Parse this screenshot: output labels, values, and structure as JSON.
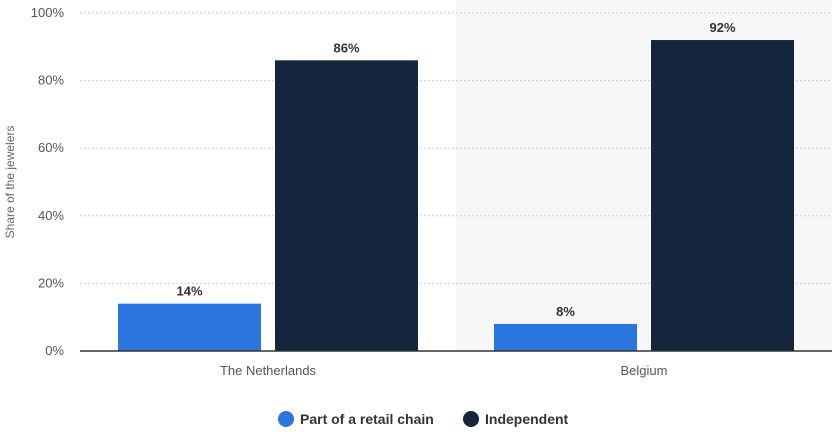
{
  "chart_data": {
    "type": "bar",
    "categories": [
      "The Netherlands",
      "Belgium"
    ],
    "series": [
      {
        "name": "Part of a retail chain",
        "color": "#2a75de",
        "values": [
          14,
          8
        ],
        "labels": [
          "14%",
          "8%"
        ]
      },
      {
        "name": "Independent",
        "color": "#13263c",
        "values": [
          86,
          92
        ],
        "labels": [
          "86%",
          "92%"
        ]
      }
    ],
    "ylabel": "Share of the jewelers",
    "ylim": [
      0,
      100
    ],
    "yticks": [
      0,
      20,
      40,
      60,
      80,
      100
    ],
    "ytick_labels": [
      "0%",
      "20%",
      "40%",
      "60%",
      "80%",
      "100%"
    ],
    "grid": true,
    "legend_position": "bottom",
    "highlighted_category": "Belgium",
    "highlight_color": "#f7f7f8"
  }
}
